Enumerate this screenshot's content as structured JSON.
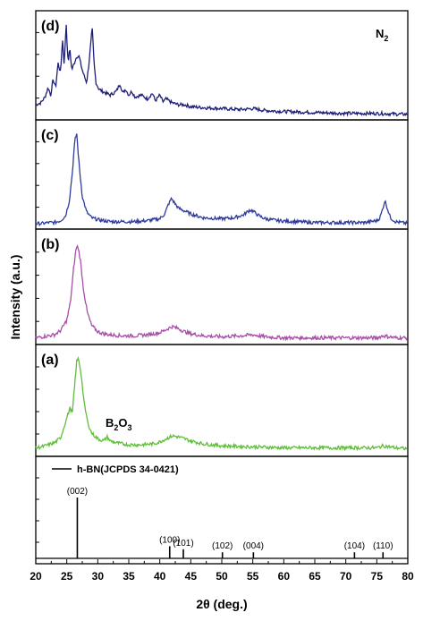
{
  "chart_data": {
    "type": "line",
    "xlabel": "2θ (deg.)",
    "ylabel": "Intensity (a.u.)",
    "xlim": [
      20,
      80
    ],
    "x_ticks": [
      20,
      25,
      30,
      35,
      40,
      45,
      50,
      55,
      60,
      65,
      70,
      75,
      80
    ],
    "panels": [
      {
        "label": "(d)",
        "color": "#1c1f7a",
        "annotation": {
          "base": "N",
          "sub": "2"
        },
        "x": [
          20,
          20.8,
          21.5,
          22,
          22.4,
          22.8,
          23.2,
          23.6,
          24,
          24.3,
          24.6,
          24.9,
          25.2,
          25.5,
          25.8,
          26.2,
          26.6,
          27,
          27.4,
          27.8,
          28.2,
          28.5,
          28.8,
          29.1,
          29.4,
          29.7,
          30.2,
          31,
          32,
          33,
          33.6,
          34,
          34.5,
          35,
          35.5,
          36,
          37,
          38,
          38.8,
          39.3,
          40,
          40.5,
          41,
          42,
          43,
          44,
          45,
          47,
          50,
          53,
          55,
          57,
          60,
          65,
          70,
          75,
          80
        ],
        "y": [
          0.12,
          0.14,
          0.2,
          0.3,
          0.22,
          0.38,
          0.3,
          0.55,
          0.45,
          0.8,
          0.52,
          0.98,
          0.55,
          0.7,
          0.48,
          0.55,
          0.62,
          0.62,
          0.5,
          0.42,
          0.35,
          0.5,
          0.7,
          0.92,
          0.55,
          0.35,
          0.28,
          0.25,
          0.22,
          0.26,
          0.34,
          0.24,
          0.28,
          0.22,
          0.26,
          0.2,
          0.22,
          0.18,
          0.24,
          0.16,
          0.22,
          0.15,
          0.18,
          0.14,
          0.12,
          0.12,
          0.1,
          0.09,
          0.08,
          0.07,
          0.08,
          0.06,
          0.05,
          0.04,
          0.03,
          0.03,
          0.02
        ]
      },
      {
        "label": "(c)",
        "color": "#2e3b9c",
        "x": [
          20,
          21,
          22,
          23,
          24,
          24.8,
          25.4,
          25.9,
          26.3,
          26.6,
          27,
          27.5,
          28.2,
          29,
          30,
          31,
          32,
          34,
          36,
          38,
          40,
          40.8,
          41.4,
          41.9,
          42.3,
          43,
          44,
          45,
          47,
          50,
          52,
          53.5,
          54.5,
          55,
          56,
          57,
          59,
          62,
          65,
          68,
          70,
          72,
          73,
          74,
          75,
          75.5,
          75.9,
          76.3,
          76.7,
          77.2,
          78,
          79,
          80
        ],
        "y": [
          0.02,
          0.02,
          0.03,
          0.03,
          0.05,
          0.1,
          0.25,
          0.55,
          0.88,
          0.95,
          0.62,
          0.3,
          0.14,
          0.08,
          0.06,
          0.05,
          0.04,
          0.04,
          0.04,
          0.05,
          0.07,
          0.12,
          0.22,
          0.28,
          0.24,
          0.18,
          0.15,
          0.12,
          0.08,
          0.07,
          0.08,
          0.11,
          0.16,
          0.15,
          0.1,
          0.07,
          0.05,
          0.04,
          0.03,
          0.03,
          0.03,
          0.03,
          0.03,
          0.04,
          0.05,
          0.08,
          0.16,
          0.26,
          0.18,
          0.08,
          0.04,
          0.03,
          0.02
        ]
      },
      {
        "label": "(b)",
        "color": "#a84fa8",
        "x": [
          20,
          21,
          22,
          23,
          24,
          25,
          25.6,
          26.1,
          26.5,
          26.8,
          27.2,
          27.7,
          28.3,
          29,
          30,
          31,
          32,
          34,
          36,
          38,
          40,
          41,
          42,
          43,
          44,
          45,
          47,
          50,
          53,
          55,
          57,
          60,
          65,
          70,
          75,
          76,
          77,
          78,
          80
        ],
        "y": [
          0.03,
          0.04,
          0.05,
          0.06,
          0.1,
          0.2,
          0.38,
          0.7,
          0.9,
          0.92,
          0.78,
          0.5,
          0.28,
          0.15,
          0.09,
          0.07,
          0.06,
          0.05,
          0.05,
          0.06,
          0.08,
          0.11,
          0.14,
          0.12,
          0.09,
          0.07,
          0.05,
          0.04,
          0.05,
          0.06,
          0.04,
          0.03,
          0.03,
          0.03,
          0.03,
          0.05,
          0.04,
          0.03,
          0.03
        ]
      },
      {
        "label": "(a)",
        "color": "#5fbf3a",
        "annotation": {
          "base": "B",
          "sub": "2",
          "base2": "O",
          "sub2": "3"
        },
        "x": [
          20,
          21,
          22,
          23,
          24,
          25,
          25.5,
          25.9,
          26.3,
          26.6,
          26.9,
          27.3,
          27.8,
          28.4,
          29,
          30,
          31,
          31.5,
          32,
          33,
          35,
          37,
          39,
          40,
          41,
          42,
          43,
          44,
          45,
          47,
          50,
          55,
          60,
          65,
          70,
          75,
          76,
          77,
          78,
          80
        ],
        "y": [
          0.05,
          0.06,
          0.08,
          0.1,
          0.15,
          0.35,
          0.45,
          0.4,
          0.7,
          0.92,
          0.95,
          0.8,
          0.5,
          0.3,
          0.2,
          0.14,
          0.12,
          0.16,
          0.12,
          0.1,
          0.08,
          0.08,
          0.09,
          0.11,
          0.14,
          0.17,
          0.16,
          0.14,
          0.12,
          0.09,
          0.07,
          0.06,
          0.05,
          0.05,
          0.05,
          0.05,
          0.07,
          0.06,
          0.05,
          0.04
        ]
      }
    ],
    "reference": {
      "label": "h-BN(JCPDS 34-0421)",
      "peaks": [
        {
          "x": 26.7,
          "h": 1.0,
          "label": "(002)"
        },
        {
          "x": 41.6,
          "h": 0.2,
          "label": "(100)"
        },
        {
          "x": 43.8,
          "h": 0.15,
          "label": "(101)"
        },
        {
          "x": 50.1,
          "h": 0.1,
          "label": "(102)"
        },
        {
          "x": 55.1,
          "h": 0.1,
          "label": "(004)"
        },
        {
          "x": 71.4,
          "h": 0.1,
          "label": "(104)"
        },
        {
          "x": 76.0,
          "h": 0.1,
          "label": "(110)"
        }
      ]
    }
  }
}
